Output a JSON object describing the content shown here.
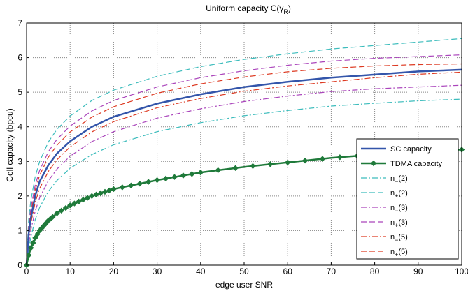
{
  "chart_data": {
    "type": "line",
    "title": "Uniform capacity C(γ",
    "title_subscript": "R",
    "title_close": ")",
    "xlabel": "edge user SNR",
    "ylabel": "Cell capacity (bpcu)",
    "xlim": [
      0,
      100
    ],
    "ylim": [
      0,
      7
    ],
    "xticks": [
      0,
      10,
      20,
      30,
      40,
      50,
      60,
      70,
      80,
      90,
      100
    ],
    "yticks": [
      0,
      1,
      2,
      3,
      4,
      5,
      6,
      7
    ],
    "grid": true,
    "legend_position": "lower-right",
    "x": [
      0,
      0.5,
      1,
      2,
      3,
      5,
      7,
      10,
      15,
      20,
      30,
      40,
      50,
      60,
      70,
      80,
      90,
      100
    ],
    "series": [
      {
        "name": "SC capacity",
        "color": "#3355aa",
        "style": "solid",
        "width": 2.5,
        "marker": "",
        "values": [
          0,
          0.92,
          1.37,
          2.01,
          2.42,
          2.89,
          3.23,
          3.58,
          4.0,
          4.29,
          4.67,
          4.94,
          5.15,
          5.3,
          5.42,
          5.51,
          5.6,
          5.65
        ]
      },
      {
        "name": "TDMA capacity",
        "color": "#1f7a3a",
        "style": "solid",
        "width": 2.5,
        "marker": "diamond",
        "values": [
          0,
          0.29,
          0.5,
          0.79,
          1.0,
          1.29,
          1.5,
          1.73,
          2.0,
          2.2,
          2.46,
          2.68,
          2.84,
          2.97,
          3.1,
          3.2,
          3.3,
          3.34
        ]
      },
      {
        "name_main": "n",
        "name_sub": "−",
        "name_tail": "(2)",
        "color": "#3cbcbc",
        "style": "dashdot",
        "width": 1.2,
        "marker": "",
        "values": [
          0,
          0.48,
          0.82,
          1.32,
          1.67,
          2.13,
          2.45,
          2.8,
          3.2,
          3.48,
          3.86,
          4.12,
          4.32,
          4.47,
          4.6,
          4.68,
          4.75,
          4.8
        ]
      },
      {
        "name_main": "n",
        "name_sub": "+",
        "name_tail": "(2)",
        "color": "#3cbcbc",
        "style": "dashed",
        "width": 1.2,
        "marker": "",
        "values": [
          0,
          1.36,
          1.88,
          2.56,
          3.0,
          3.56,
          3.93,
          4.31,
          4.76,
          5.06,
          5.46,
          5.74,
          5.95,
          6.11,
          6.25,
          6.35,
          6.45,
          6.55
        ]
      },
      {
        "name_main": "n",
        "name_sub": "−",
        "name_tail": "(3)",
        "color": "#aa44bb",
        "style": "dashdot",
        "width": 1.2,
        "marker": "",
        "values": [
          0,
          0.63,
          1.02,
          1.57,
          1.95,
          2.44,
          2.78,
          3.15,
          3.57,
          3.86,
          4.25,
          4.52,
          4.73,
          4.89,
          5.02,
          5.1,
          5.15,
          5.2
        ]
      },
      {
        "name_main": "n",
        "name_sub": "+",
        "name_tail": "(3)",
        "color": "#aa44bb",
        "style": "dashed",
        "width": 1.2,
        "marker": "",
        "values": [
          0,
          1.17,
          1.66,
          2.32,
          2.74,
          3.28,
          3.64,
          4.02,
          4.46,
          4.76,
          5.15,
          5.42,
          5.62,
          5.78,
          5.9,
          5.98,
          6.03,
          6.08
        ]
      },
      {
        "name_main": "n",
        "name_sub": "−",
        "name_tail": "(5)",
        "color": "#dd3a22",
        "style": "dashdot",
        "width": 1.2,
        "marker": "",
        "values": [
          0,
          0.8,
          1.22,
          1.82,
          2.22,
          2.71,
          3.05,
          3.42,
          3.85,
          4.15,
          4.55,
          4.82,
          5.03,
          5.18,
          5.3,
          5.42,
          5.52,
          5.58
        ]
      },
      {
        "name_main": "n",
        "name_sub": "+",
        "name_tail": "(5)",
        "color": "#dd3a22",
        "style": "dashed",
        "width": 1.2,
        "marker": "",
        "values": [
          0,
          1.05,
          1.52,
          2.18,
          2.6,
          3.12,
          3.47,
          3.85,
          4.28,
          4.58,
          4.97,
          5.24,
          5.44,
          5.59,
          5.69,
          5.76,
          5.8,
          5.82
        ]
      }
    ]
  }
}
